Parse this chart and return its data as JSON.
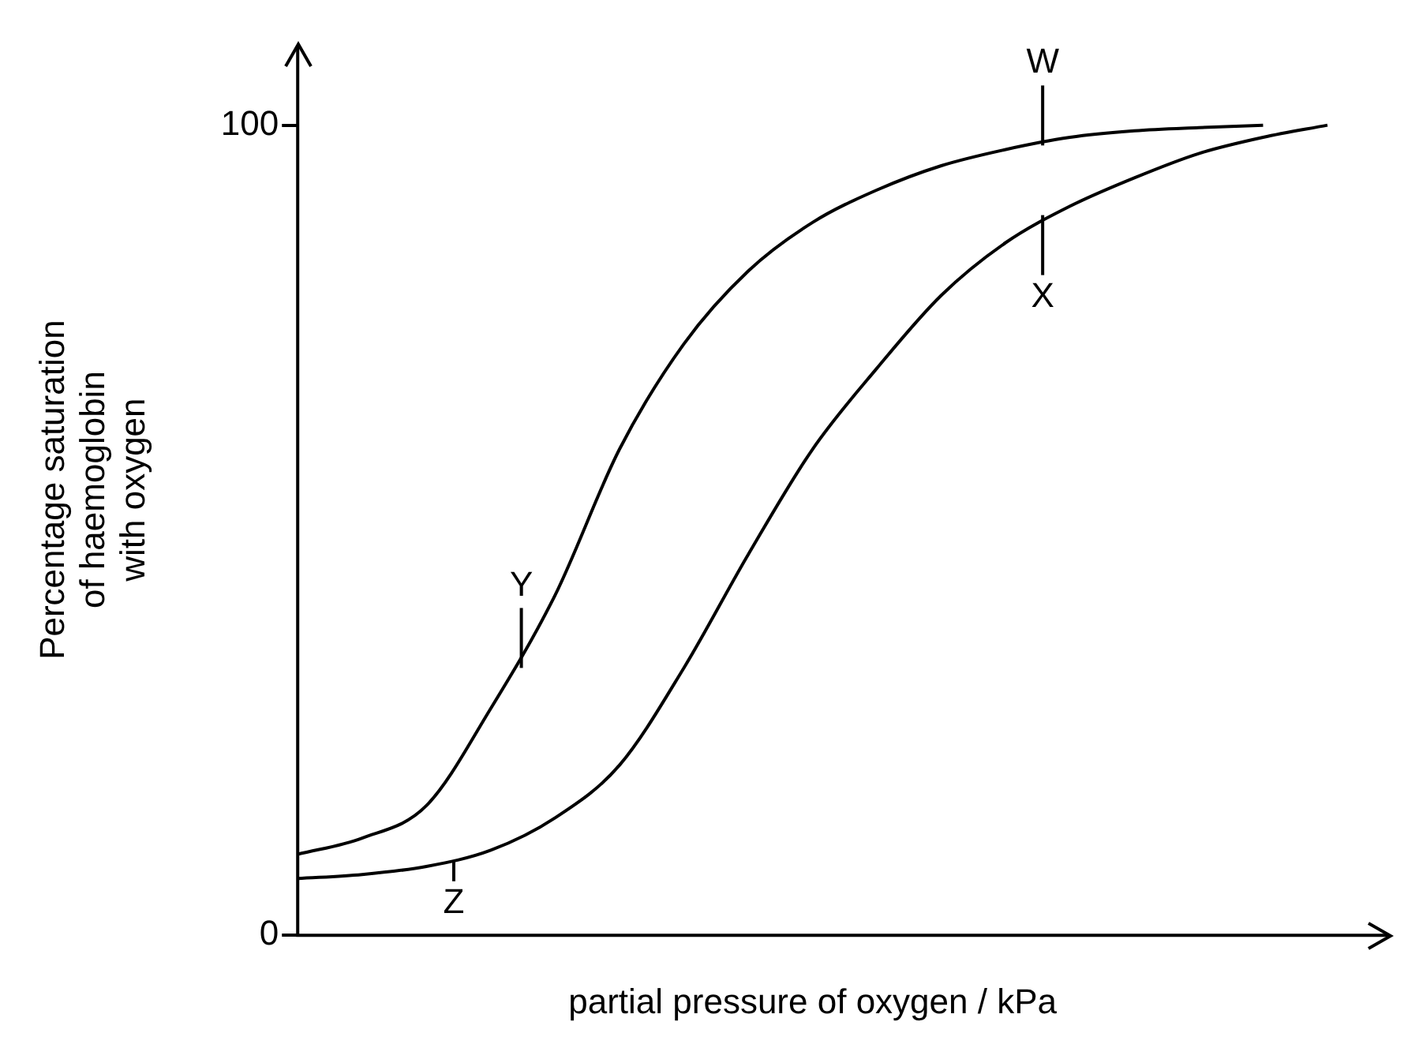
{
  "chart_data": {
    "type": "line",
    "xlabel": "partial pressure of oxygen / kPa",
    "ylabel": "Percentage saturation\nof haemoglobin\nwith oxygen",
    "categories": [
      null,
      null,
      null,
      null,
      null,
      null,
      null,
      null,
      null,
      null,
      null,
      null,
      null,
      null,
      null,
      null,
      null
    ],
    "series": [
      {
        "color": "#000000",
        "values": [
          10,
          12,
          16,
          28,
          42,
          60,
          73,
          82,
          88,
          92,
          95,
          97,
          98.5,
          99.3,
          99.7,
          100,
          null
        ]
      },
      {
        "color": "#000000",
        "values": [
          7,
          7.5,
          8.5,
          10.5,
          14.5,
          21,
          33,
          47,
          60,
          70,
          79,
          85.5,
          90,
          93.5,
          96.5,
          98.5,
          100
        ]
      }
    ],
    "ylim": [
      0,
      110
    ],
    "yticks": [
      0,
      100
    ],
    "grid": false,
    "legend": false,
    "marker": "none",
    "line_style": "solid",
    "tick_labels": "y",
    "annotations": [
      {
        "text": "W",
        "y": 97.5
      },
      {
        "text": "X",
        "y": 88.9
      },
      {
        "text": "Y",
        "y": 33
      },
      {
        "text": "Z",
        "y": 9.2
      }
    ]
  }
}
